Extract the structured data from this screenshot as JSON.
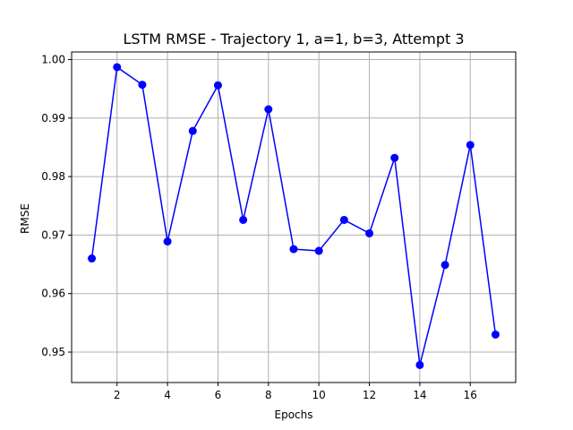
{
  "chart_data": {
    "type": "line",
    "title": "LSTM RMSE - Trajectory 1, a=1, b=3, Attempt 3",
    "xlabel": "Epochs",
    "ylabel": "RMSE",
    "xlim": [
      0.2,
      17.8
    ],
    "ylim": [
      0.9448,
      1.0013
    ],
    "xticks": [
      2,
      4,
      6,
      8,
      10,
      12,
      14,
      16
    ],
    "xtick_labels": [
      "2",
      "4",
      "6",
      "8",
      "10",
      "12",
      "14",
      "16"
    ],
    "yticks": [
      0.95,
      0.96,
      0.97,
      0.98,
      0.99,
      1.0
    ],
    "ytick_labels": [
      "0.95",
      "0.96",
      "0.97",
      "0.98",
      "0.99",
      "1.00"
    ],
    "grid": true,
    "series": [
      {
        "color": "#0000ff",
        "marker": "circle",
        "x": [
          1,
          2,
          3,
          4,
          5,
          6,
          7,
          8,
          9,
          10,
          11,
          12,
          13,
          14,
          15,
          16,
          17
        ],
        "y": [
          0.966,
          0.9987,
          0.9957,
          0.9689,
          0.9878,
          0.9956,
          0.9726,
          0.9915,
          0.9676,
          0.9673,
          0.9726,
          0.9703,
          0.9832,
          0.9478,
          0.9649,
          0.9854,
          0.953
        ]
      }
    ]
  }
}
